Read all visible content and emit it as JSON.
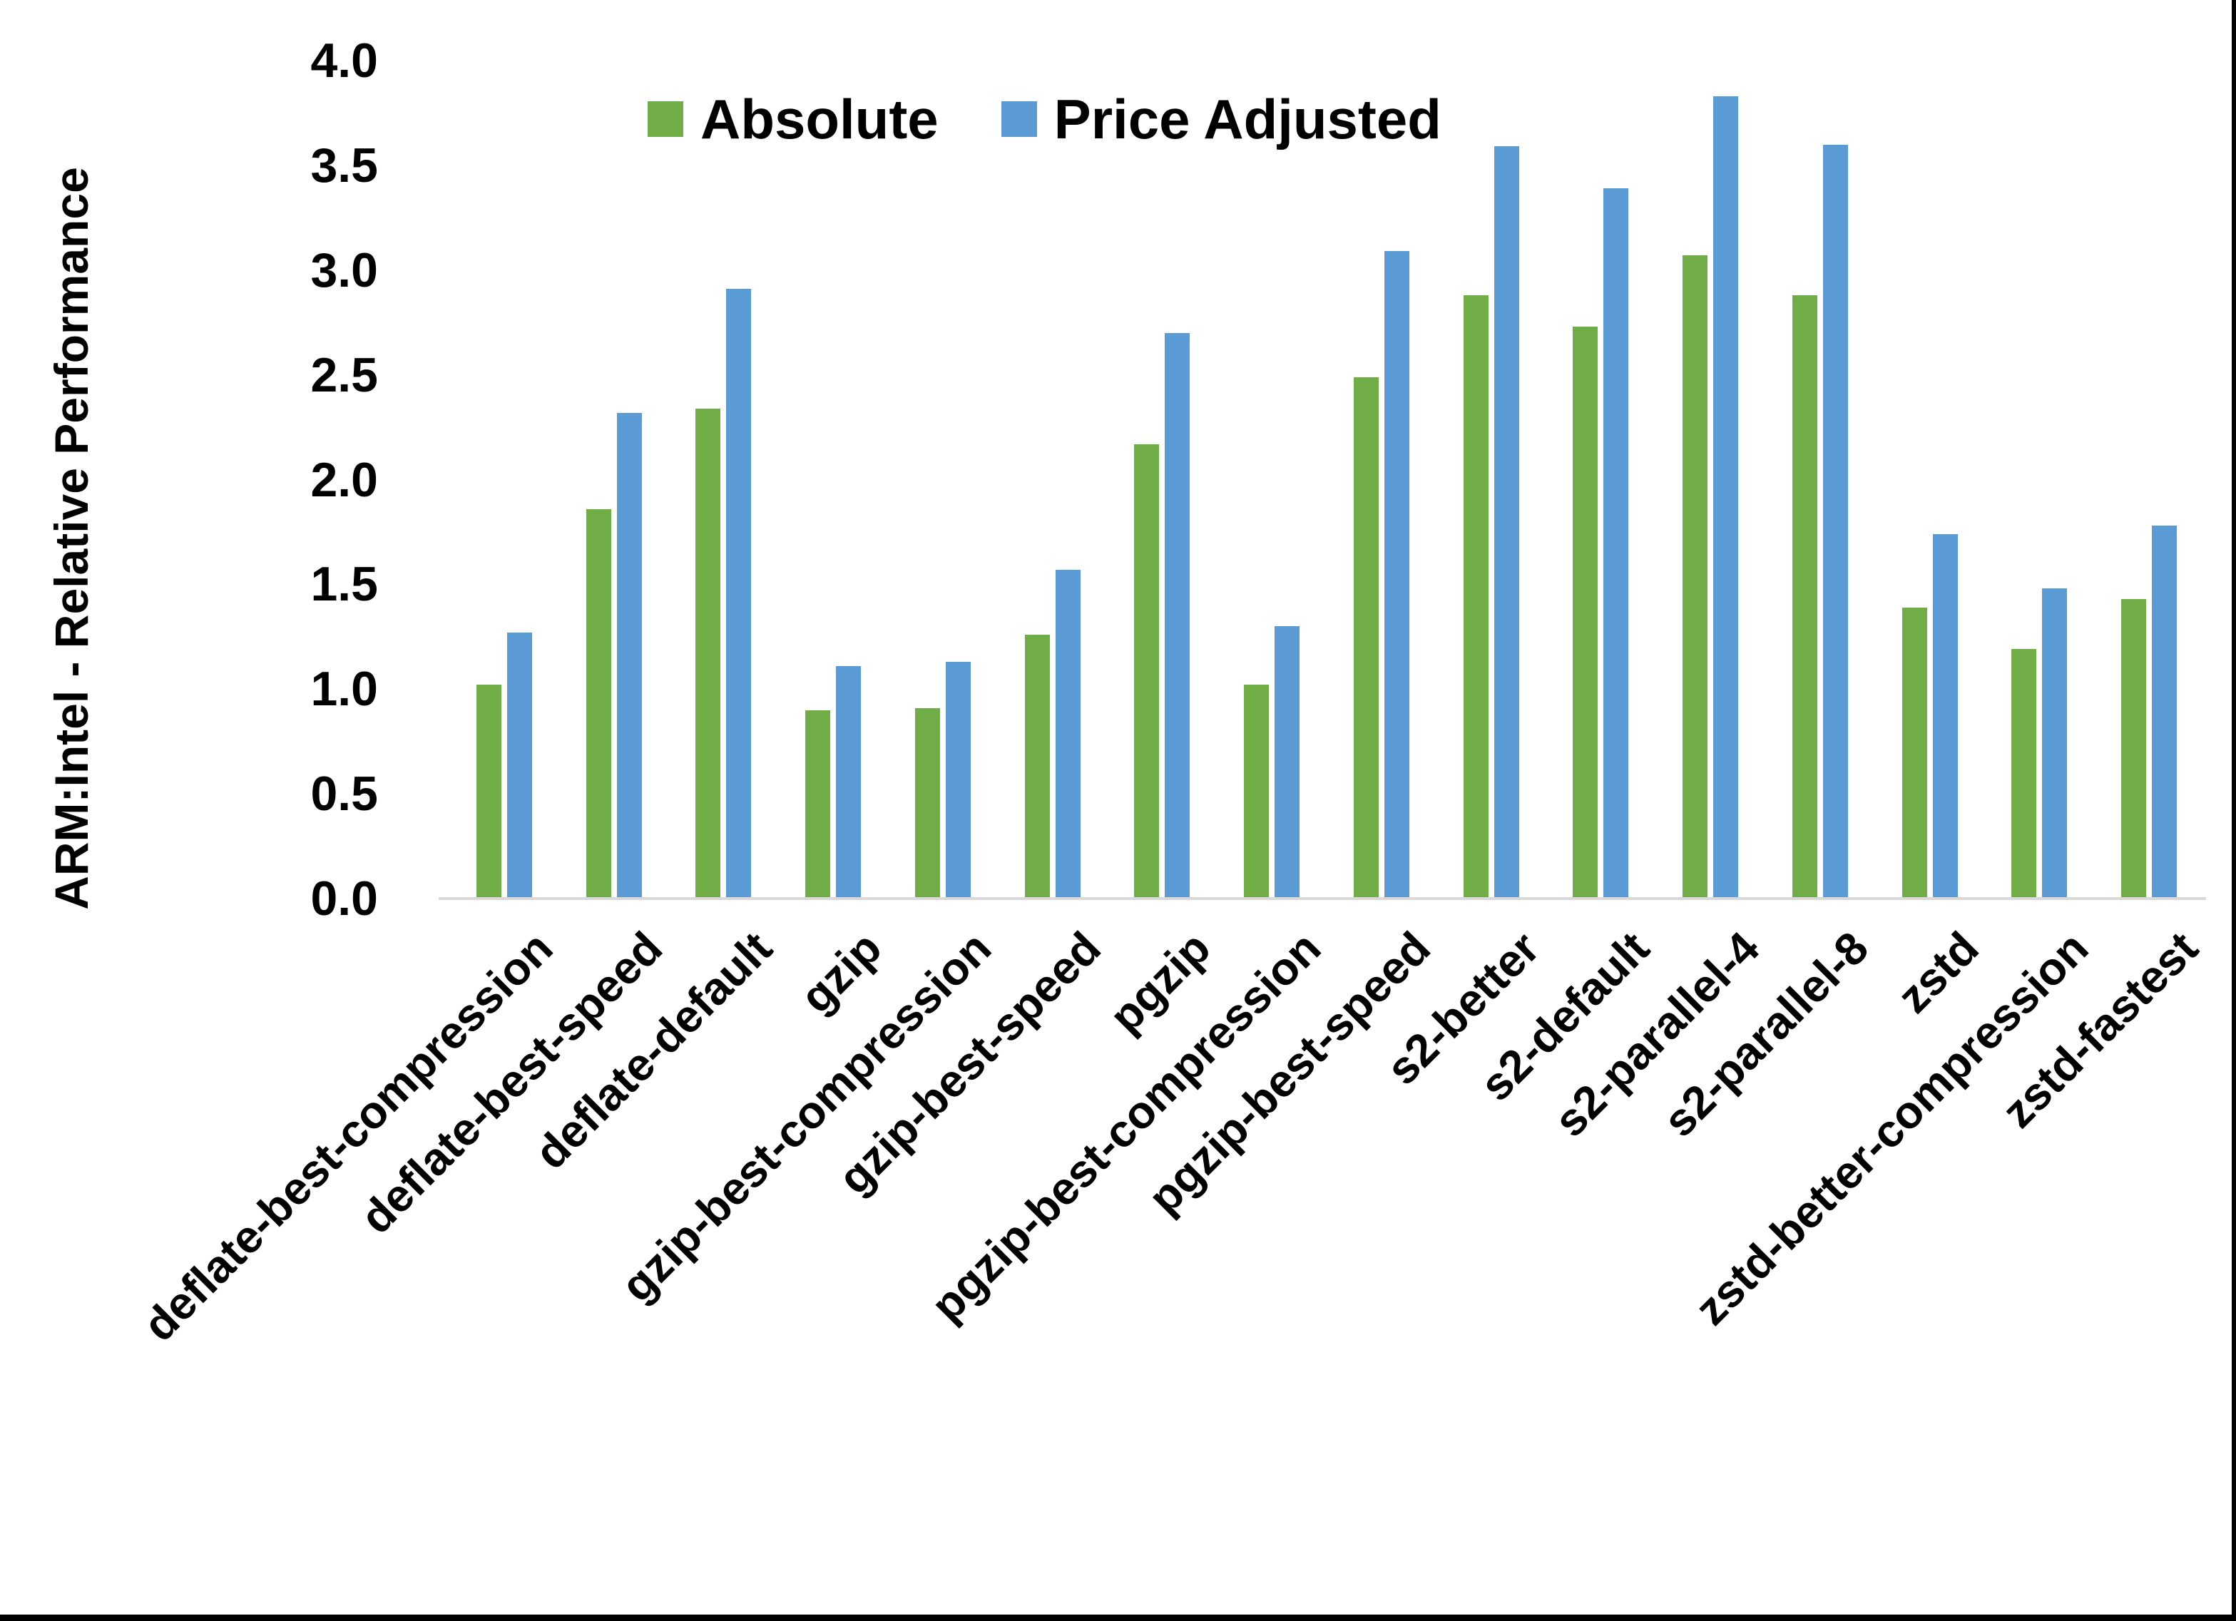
{
  "page": {
    "background_color": "#FFFFFF",
    "frame_color": "#000000"
  },
  "chart_data": {
    "type": "bar",
    "title": "",
    "xlabel": "",
    "ylabel": "ARM:Intel - Relative Performance",
    "ylim": [
      0,
      4
    ],
    "ytick_step": 0.5,
    "ytick_labels": [
      "4.0",
      "3.5",
      "3.0",
      "2.5",
      "2.0",
      "1.5",
      "1.0",
      "0.5",
      "0.0"
    ],
    "grid": false,
    "legend_position": "top-inside",
    "axis_line_color": "#D9D9D9",
    "categories": [
      "deflate-best-compression",
      "deflate-best-speed",
      "deflate-default",
      "gzip",
      "gzip-best-compression",
      "gzip-best-speed",
      "pgzip",
      "pgzip-best-compression",
      "pgzip-best-speed",
      "s2-better",
      "s2-default",
      "s2-parallel-4",
      "s2-parallel-8",
      "zstd",
      "zstd-better-compression",
      "zstd-fastest"
    ],
    "series": [
      {
        "name": "Absolute",
        "color": "#70AD47",
        "values": [
          1.02,
          1.86,
          2.34,
          0.9,
          0.91,
          1.26,
          2.17,
          1.02,
          2.49,
          2.88,
          2.73,
          3.07,
          2.88,
          1.39,
          1.19,
          1.43
        ]
      },
      {
        "name": "Price Adjusted",
        "color": "#5B9BD5",
        "values": [
          1.27,
          2.32,
          2.91,
          1.11,
          1.13,
          1.57,
          2.7,
          1.3,
          3.09,
          3.59,
          3.39,
          3.83,
          3.6,
          1.74,
          1.48,
          1.78
        ]
      }
    ]
  }
}
